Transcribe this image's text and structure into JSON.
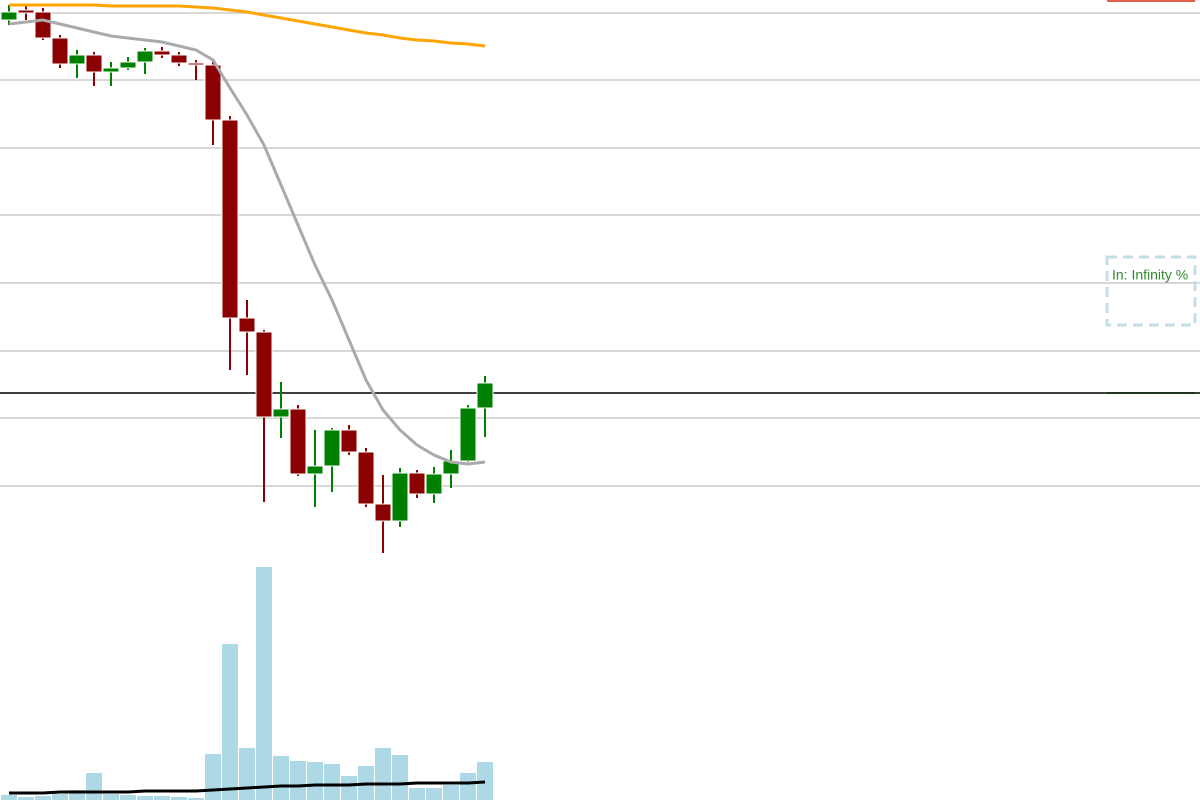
{
  "chart_data": {
    "type": "candlestick",
    "open": [
      780,
      790,
      788,
      762,
      736,
      745,
      728,
      732,
      738,
      749,
      745,
      737,
      735,
      680,
      482,
      468,
      383,
      391,
      326,
      334,
      370,
      348,
      296,
      279,
      327,
      306,
      326,
      339,
      392
    ],
    "close": [
      788,
      787,
      762,
      736,
      745,
      728,
      732,
      738,
      749,
      745,
      737,
      735,
      680,
      482,
      468,
      383,
      391,
      326,
      334,
      370,
      348,
      296,
      279,
      327,
      306,
      326,
      339,
      392,
      417
    ],
    "high": [
      795,
      795,
      792,
      765,
      750,
      748,
      738,
      743,
      752,
      753,
      748,
      740,
      740,
      684,
      500,
      470,
      418,
      395,
      370,
      372,
      375,
      352,
      325,
      332,
      330,
      333,
      350,
      395,
      424
    ],
    "low": [
      775,
      780,
      760,
      732,
      722,
      714,
      714,
      730,
      726,
      742,
      734,
      720,
      655,
      430,
      425,
      298,
      362,
      324,
      293,
      308,
      345,
      293,
      247,
      273,
      302,
      297,
      312,
      338,
      363
    ],
    "up_color": "#008000",
    "down_color": "#8b0000",
    "volume": [
      5,
      3,
      4,
      6,
      10,
      27,
      6,
      5,
      4,
      4,
      3,
      2,
      46,
      156,
      52,
      233,
      44,
      39,
      38,
      36,
      24,
      34,
      52,
      45,
      12,
      12,
      15,
      27,
      38
    ],
    "volume_color": "#add8e6",
    "series": [
      {
        "color": "#aaaaaa",
        "values": [
          776,
          778,
          780,
          776,
          772,
          768,
          764,
          762,
          760,
          758,
          754,
          750,
          740,
          712,
          685,
          655,
          615,
          575,
          535,
          500,
          460,
          420,
          390,
          370,
          355,
          345,
          338,
          336,
          338
        ]
      },
      {
        "color": "#ffa500",
        "values": [
          795,
          795,
          795,
          795,
          795,
          795,
          794,
          794,
          794,
          794,
          794,
          793,
          792,
          790,
          788,
          785,
          782,
          779,
          776,
          773,
          770,
          767,
          765,
          762,
          760,
          759,
          757,
          756,
          754
        ]
      },
      {
        "color": "#000000",
        "panel": "volume",
        "values": [
          7,
          7,
          7,
          8,
          8,
          8,
          8,
          8,
          9,
          9,
          9,
          9,
          10,
          11,
          12,
          13,
          14,
          14,
          15,
          15,
          15,
          16,
          16,
          16,
          17,
          17,
          17,
          17,
          18
        ]
      }
    ],
    "ylim": [
      0,
      800
    ],
    "yticks": [
      787,
      720,
      652,
      585,
      517,
      449,
      382,
      314
    ],
    "grid": true,
    "price_line": 407,
    "levels": [
      {
        "color": "#e0604a",
        "value": 799
      },
      {
        "color": "#7fc97f",
        "value": 407
      }
    ],
    "annotation": "In: Infinity %"
  }
}
